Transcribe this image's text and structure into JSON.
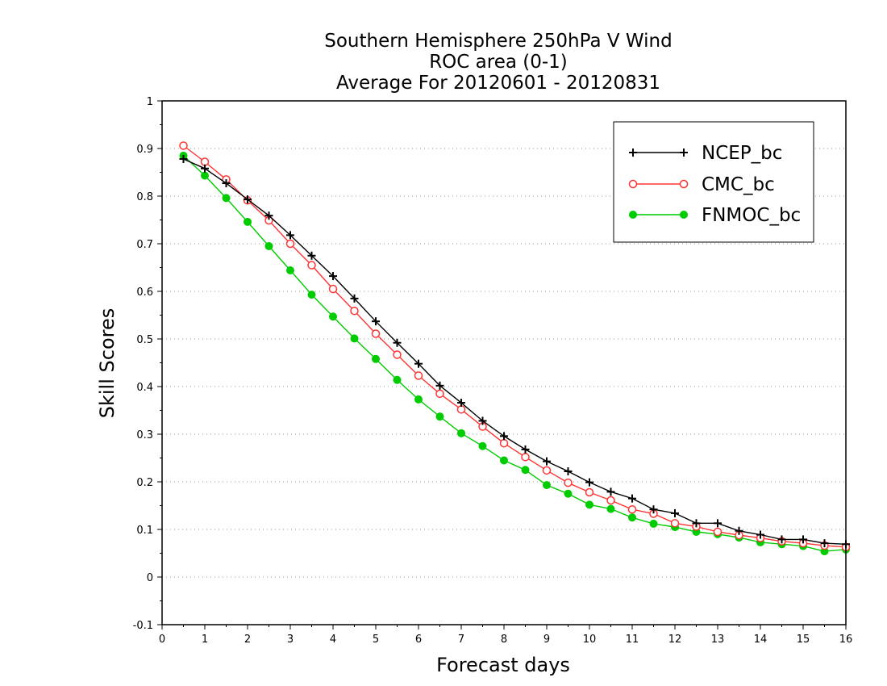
{
  "chart_data": {
    "type": "line",
    "title_lines": [
      "Southern Hemisphere 250hPa V Wind",
      "ROC area (0-1)",
      "Average For 20120601 - 20120831"
    ],
    "xlabel": "Forecast days",
    "ylabel": "Skill Scores",
    "xlim": [
      0,
      16
    ],
    "ylim": [
      -0.1,
      1
    ],
    "x_ticks": [
      0,
      1,
      2,
      3,
      4,
      5,
      6,
      7,
      8,
      9,
      10,
      11,
      12,
      13,
      14,
      15,
      16
    ],
    "x_tick_labels": [
      "0",
      "1",
      "2",
      "3",
      "4",
      "5",
      "6",
      "7",
      "8",
      "9",
      "10",
      "11",
      "12",
      "13",
      "14",
      "15",
      "16"
    ],
    "y_ticks": [
      -0.1,
      0,
      0.1,
      0.2,
      0.3,
      0.4,
      0.5,
      0.6,
      0.7,
      0.8,
      0.9,
      1
    ],
    "y_tick_labels": [
      "-0.1",
      "0",
      "0.1",
      "0.2",
      "0.3",
      "0.4",
      "0.5",
      "0.6",
      "0.7",
      "0.8",
      "0.9",
      "1"
    ],
    "grid": "horizontal dotted",
    "legend_position": "top-right",
    "x": [
      0.5,
      1,
      1.5,
      2,
      2.5,
      3,
      3.5,
      4,
      4.5,
      5,
      5.5,
      6,
      6.5,
      7,
      7.5,
      8,
      8.5,
      9,
      9.5,
      10,
      10.5,
      11,
      11.5,
      12,
      12.5,
      13,
      13.5,
      14,
      14.5,
      15,
      15.5,
      16
    ],
    "series": [
      {
        "name": "NCEP_bc",
        "color": "#000000",
        "marker": "plus",
        "values": [
          0.878,
          0.858,
          0.827,
          0.793,
          0.759,
          0.718,
          0.675,
          0.632,
          0.585,
          0.537,
          0.492,
          0.448,
          0.402,
          0.366,
          0.328,
          0.296,
          0.268,
          0.243,
          0.222,
          0.199,
          0.179,
          0.165,
          0.142,
          0.134,
          0.113,
          0.113,
          0.097,
          0.089,
          0.079,
          0.079,
          0.071,
          0.069
        ]
      },
      {
        "name": "CMC_bc",
        "color": "#ff3333",
        "marker": "open-circle",
        "values": [
          0.906,
          0.872,
          0.835,
          0.791,
          0.749,
          0.7,
          0.655,
          0.605,
          0.559,
          0.511,
          0.467,
          0.423,
          0.385,
          0.352,
          0.316,
          0.281,
          0.252,
          0.224,
          0.198,
          0.178,
          0.161,
          0.142,
          0.133,
          0.113,
          0.106,
          0.095,
          0.088,
          0.082,
          0.075,
          0.071,
          0.066,
          0.063
        ]
      },
      {
        "name": "FNMOC_bc",
        "color": "#00cc00",
        "marker": "filled-circle",
        "values": [
          0.885,
          0.843,
          0.796,
          0.746,
          0.695,
          0.644,
          0.593,
          0.547,
          0.501,
          0.458,
          0.414,
          0.373,
          0.337,
          0.302,
          0.275,
          0.245,
          0.225,
          0.193,
          0.175,
          0.152,
          0.143,
          0.125,
          0.112,
          0.105,
          0.095,
          0.09,
          0.083,
          0.073,
          0.069,
          0.065,
          0.054,
          0.058
        ]
      }
    ]
  }
}
